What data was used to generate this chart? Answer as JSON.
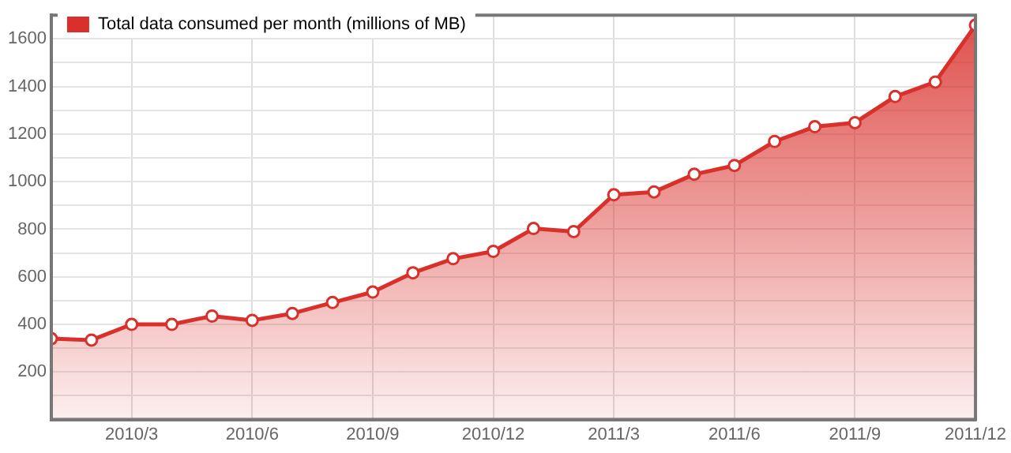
{
  "chart_data": {
    "type": "area",
    "x": [
      "2010-01",
      "2010-02",
      "2010-03",
      "2010-04",
      "2010-05",
      "2010-06",
      "2010-07",
      "2010-08",
      "2010-09",
      "2010-10",
      "2010-11",
      "2010-12",
      "2011-01",
      "2011-02",
      "2011-03",
      "2011-04",
      "2011-05",
      "2011-06",
      "2011-07",
      "2011-08",
      "2011-09",
      "2011-10",
      "2011-11",
      "2011-12"
    ],
    "series": [
      {
        "name": "Total data consumed per month (millions of MB)",
        "color": "#d9302b",
        "values": [
          340,
          334,
          400,
          400,
          435,
          417,
          446,
          492,
          536,
          617,
          676,
          707,
          803,
          790,
          945,
          957,
          1031,
          1068,
          1169,
          1231,
          1248,
          1358,
          1419,
          1658
        ]
      }
    ],
    "xlim": [
      "2010-01",
      "2011-12"
    ],
    "xticks": [
      {
        "value": "2010-03",
        "label": "2010/3"
      },
      {
        "value": "2010-06",
        "label": "2010/6"
      },
      {
        "value": "2010-09",
        "label": "2010/9"
      },
      {
        "value": "2010-12",
        "label": "2010/12"
      },
      {
        "value": "2011-03",
        "label": "2011/3"
      },
      {
        "value": "2011-06",
        "label": "2011/6"
      },
      {
        "value": "2011-09",
        "label": "2011/9"
      },
      {
        "value": "2011-12",
        "label": "2011/12"
      }
    ],
    "ylim": [
      0,
      1700
    ],
    "yticks": [
      {
        "value": 100,
        "label": null
      },
      200,
      {
        "value": 300,
        "label": null
      },
      400,
      {
        "value": 500,
        "label": null
      },
      600,
      {
        "value": 700,
        "label": null
      },
      800,
      {
        "value": 900,
        "label": null
      },
      1000,
      {
        "value": 1100,
        "label": null
      },
      1200,
      {
        "value": 1300,
        "label": null
      },
      1400,
      {
        "value": 1500,
        "label": null
      },
      1600,
      {
        "value": 1700,
        "label": null
      }
    ],
    "grid": true,
    "legend": "top left",
    "marker": "circle"
  }
}
